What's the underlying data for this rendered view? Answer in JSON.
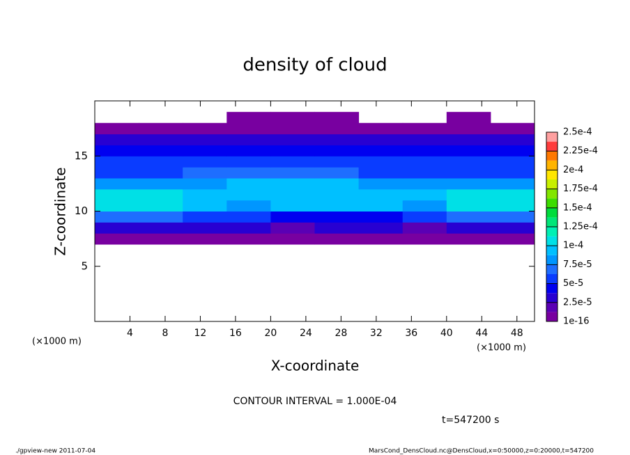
{
  "chart_data": {
    "type": "heatmap",
    "title": "density of cloud",
    "x_label": "X-coordinate",
    "y_label": "Z-coordinate",
    "x_unit_left": "(×1000 m)",
    "x_unit_right": "(×1000 m)",
    "contour_note": "CONTOUR INTERVAL = 1.000E-04",
    "time_note": "t=547200 s",
    "footer_left": "./gpview-new  2011-07-04",
    "footer_right": "MarsCond_DensCloud.nc@DensCloud,x=0:50000,z=0:20000,t=547200",
    "xlim": [
      0,
      50
    ],
    "ylim": [
      0,
      20
    ],
    "xticks": [
      4,
      8,
      12,
      16,
      20,
      24,
      28,
      32,
      36,
      40,
      44,
      48
    ],
    "yticks": [
      5,
      10,
      15
    ],
    "x": [
      2.5,
      7.5,
      12.5,
      17.5,
      22.5,
      27.5,
      32.5,
      37.5,
      42.5,
      47.5
    ],
    "z": [
      7.5,
      8.5,
      9.5,
      10.5,
      11.5,
      12.5,
      13.5,
      14.5,
      15.5,
      16.5,
      17.5,
      18.5
    ],
    "values": [
      [
        8e-06,
        8e-06,
        8e-06,
        8e-06,
        8e-06,
        8e-06,
        8e-06,
        8e-06,
        8e-06,
        8e-06
      ],
      [
        3e-05,
        3e-05,
        3e-05,
        3e-05,
        2e-05,
        3e-05,
        3e-05,
        2e-05,
        3e-05,
        3e-05
      ],
      [
        7e-05,
        7e-05,
        6e-05,
        6e-05,
        5e-05,
        5e-05,
        5e-05,
        6e-05,
        7e-05,
        7e-05
      ],
      [
        0.00011,
        0.00011,
        9e-05,
        8e-05,
        9e-05,
        9e-05,
        9e-05,
        8e-05,
        0.00011,
        0.00011
      ],
      [
        0.00011,
        0.00011,
        0.0001,
        9e-05,
        0.0001,
        0.0001,
        0.0001,
        9e-05,
        0.00011,
        0.00011
      ],
      [
        8e-05,
        8e-05,
        8e-05,
        9e-05,
        9e-05,
        9e-05,
        8e-05,
        8e-05,
        8e-05,
        8e-05
      ],
      [
        6e-05,
        6e-05,
        7e-05,
        7e-05,
        7e-05,
        7e-05,
        6e-05,
        6e-05,
        6e-05,
        6e-05
      ],
      [
        6e-05,
        6e-05,
        6e-05,
        6e-05,
        6e-05,
        6e-05,
        6e-05,
        6e-05,
        6e-05,
        6e-05
      ],
      [
        5e-05,
        5e-05,
        5e-05,
        5e-05,
        5e-05,
        5e-05,
        5e-05,
        5e-05,
        5e-05,
        5e-05
      ],
      [
        3e-05,
        3e-05,
        3e-05,
        3e-05,
        3e-05,
        3e-05,
        3e-05,
        3e-05,
        3e-05,
        3e-05
      ],
      [
        1e-05,
        1e-05,
        1e-05,
        1e-05,
        1e-05,
        1e-05,
        1e-05,
        1e-05,
        1e-05,
        1e-05
      ],
      [
        null,
        null,
        null,
        5e-06,
        5e-06,
        5e-06,
        null,
        null,
        5e-06,
        null
      ]
    ],
    "colorbar_ticks": [
      {
        "value": 1e-16,
        "label": "1e-16"
      },
      {
        "value": 2.5e-05,
        "label": "2.5e-5"
      },
      {
        "value": 5e-05,
        "label": "5e-5"
      },
      {
        "value": 7.5e-05,
        "label": "7.5e-5"
      },
      {
        "value": 0.0001,
        "label": "1e-4"
      },
      {
        "value": 0.000125,
        "label": "1.25e-4"
      },
      {
        "value": 0.00015,
        "label": "1.5e-4"
      },
      {
        "value": 0.000175,
        "label": "1.75e-4"
      },
      {
        "value": 0.0002,
        "label": "2e-4"
      },
      {
        "value": 0.000225,
        "label": "2.25e-4"
      },
      {
        "value": 0.00025,
        "label": "2.5e-4"
      }
    ],
    "colors": [
      "#7800a0",
      "#5a00b4",
      "#2800d2",
      "#0000f0",
      "#0a3cff",
      "#1e6eff",
      "#0096ff",
      "#00c0ff",
      "#00e0e6",
      "#00f0b4",
      "#00e678",
      "#00dc3c",
      "#3cdc00",
      "#82e600",
      "#c8f000",
      "#ffe600",
      "#ffb400",
      "#ff7800",
      "#ff3c3c",
      "#ffa0a0"
    ]
  }
}
